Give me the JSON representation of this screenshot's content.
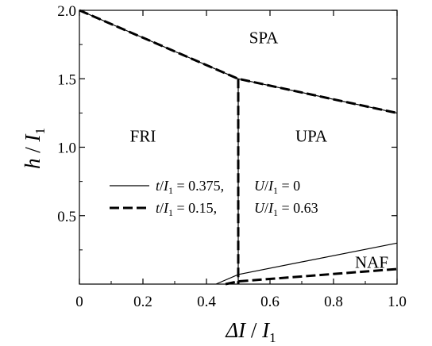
{
  "chart_data": {
    "type": "line",
    "title": "",
    "xlabel": "ΔI / I1",
    "ylabel": "h / I1",
    "xlim": [
      0,
      1.0
    ],
    "ylim": [
      0,
      2.0
    ],
    "grid": false,
    "x_ticks": [
      0,
      0.2,
      0.4,
      0.6,
      0.8,
      1.0
    ],
    "x_tick_labels": [
      "0",
      "0.2",
      "0.4",
      "0.6",
      "0.8",
      "1.0"
    ],
    "y_ticks": [
      0.5,
      1.0,
      1.5,
      2.0
    ],
    "y_tick_labels": [
      "0.5",
      "1.0",
      "1.5",
      "2.0"
    ],
    "legend_position": "center-left",
    "series": [
      {
        "name": "t/I1 = 0.375,   U/I1 = 0",
        "style": "solid",
        "segments": [
          [
            [
              0,
              2.0
            ],
            [
              0.5,
              1.5
            ],
            [
              1.0,
              1.25
            ]
          ],
          [
            [
              0.5,
              1.5
            ],
            [
              0.5,
              0
            ]
          ],
          [
            [
              0.43,
              0
            ],
            [
              0.5,
              0.07
            ],
            [
              1.0,
              0.3
            ]
          ]
        ]
      },
      {
        "name": "t/I1 = 0.15,   U/I1 = 0.63",
        "style": "dashed",
        "segments": [
          [
            [
              0,
              2.0
            ],
            [
              0.5,
              1.5
            ],
            [
              1.0,
              1.25
            ]
          ],
          [
            [
              0.5,
              1.5
            ],
            [
              0.5,
              0
            ]
          ],
          [
            [
              0.46,
              0
            ],
            [
              0.5,
              0.02
            ],
            [
              1.0,
              0.11
            ]
          ]
        ]
      }
    ],
    "annotations": [
      {
        "text": "SPA",
        "x": 0.58,
        "y": 1.8
      },
      {
        "text": "FRI",
        "x": 0.2,
        "y": 1.08
      },
      {
        "text": "UPA",
        "x": 0.73,
        "y": 1.08
      },
      {
        "text": "NAF",
        "x": 0.92,
        "y": 0.16
      }
    ]
  },
  "legend": {
    "entries": [
      {
        "t_label": "t",
        "t_value": "= 0.375,",
        "u_label": "U",
        "u_value": "= 0"
      },
      {
        "t_label": "t",
        "t_value": "= 0.15,",
        "u_label": "U",
        "u_value": "= 0.63"
      }
    ]
  },
  "axis_titles": {
    "x": {
      "main": "ΔI",
      "sep": " / ",
      "sym": "I",
      "sub": "1"
    },
    "y": {
      "main": "h",
      "sep": " / ",
      "sym": "I",
      "sub": "1"
    }
  },
  "colors": {
    "line": "#000000",
    "background": "#ffffff"
  }
}
